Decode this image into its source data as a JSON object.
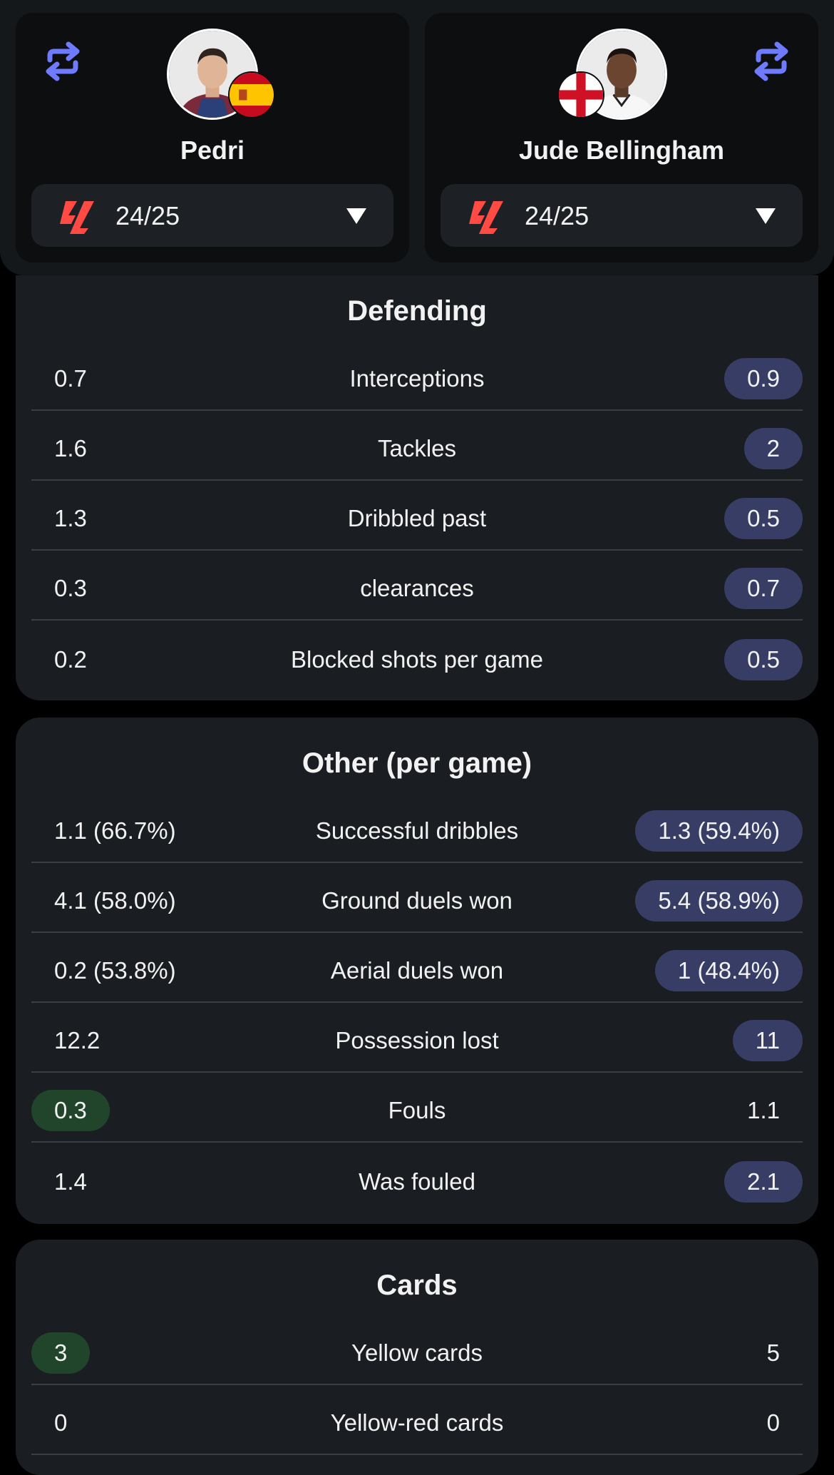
{
  "players": {
    "left": {
      "name": "Pedri",
      "season": "24/25",
      "flag": "spain-flag"
    },
    "right": {
      "name": "Jude Bellingham",
      "season": "24/25",
      "flag": "england-flag"
    }
  },
  "colors": {
    "accent_swap": "#6e7bff",
    "league_logo": "#ff4b44",
    "pill_blue": "#383d66",
    "pill_green": "#21452b"
  },
  "sections": {
    "defending": {
      "title": "Defending",
      "rows": [
        {
          "left": "0.7",
          "label": "Interceptions",
          "right": "0.9"
        },
        {
          "left": "1.6",
          "label": "Tackles",
          "right": "2"
        },
        {
          "left": "1.3",
          "label": "Dribbled past",
          "right": "0.5"
        },
        {
          "left": "0.3",
          "label": "clearances",
          "right": "0.7"
        },
        {
          "left": "0.2",
          "label": "Blocked shots per game",
          "right": "0.5"
        }
      ]
    },
    "other": {
      "title": "Other (per game)",
      "rows": [
        {
          "left": "1.1 (66.7%)",
          "label": "Successful dribbles",
          "right": "1.3 (59.4%)"
        },
        {
          "left": "4.1 (58.0%)",
          "label": "Ground duels won",
          "right": "5.4 (58.9%)"
        },
        {
          "left": "0.2 (53.8%)",
          "label": "Aerial duels won",
          "right": "1 (48.4%)"
        },
        {
          "left": "12.2",
          "label": "Possession lost",
          "right": "11"
        },
        {
          "left": "0.3",
          "label": "Fouls",
          "right": "1.1"
        },
        {
          "left": "1.4",
          "label": "Was fouled",
          "right": "2.1"
        }
      ]
    },
    "cards": {
      "title": "Cards",
      "rows": [
        {
          "left": "3",
          "label": "Yellow cards",
          "right": "5"
        },
        {
          "left": "0",
          "label": "Yellow-red cards",
          "right": "0"
        }
      ]
    }
  }
}
